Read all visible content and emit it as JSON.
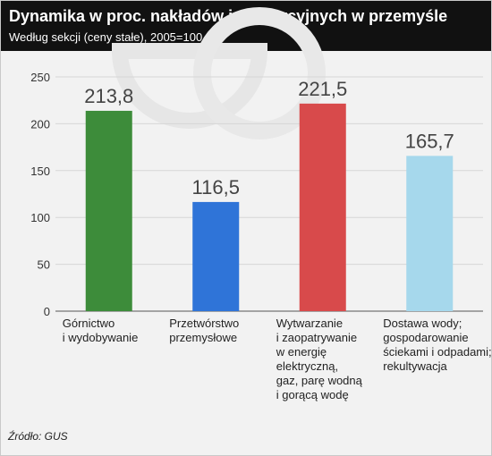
{
  "header": {
    "title": "Dynamika w proc. nakładów inwestycyjnych w przemyśle",
    "subtitle": "Według sekcji (ceny stałe), 2005=100"
  },
  "footer": {
    "source": "Źródło: GUS"
  },
  "colors": {
    "header_bg": "#111111",
    "panel_bg": "#f2f2f2",
    "watermark": "#e6e6e6"
  },
  "chart_data": {
    "type": "bar",
    "categories": [
      "Górnictwo i wydobywanie",
      "Przetwórstwo przemysłowe",
      "Wytwarzanie i zaopatrywanie w energię elektryczną, gaz, parę wodną i gorącą wodę",
      "Dostawa wody; gospodarowanie ściekami i odpadami; rekultywacja"
    ],
    "category_lines": [
      [
        "Górnictwo",
        "i wydobywanie"
      ],
      [
        "Przetwórstwo",
        "przemysłowe"
      ],
      [
        "Wytwarzanie",
        "i zaopatrywanie",
        "w energię",
        "elektryczną,",
        "gaz, parę wodną",
        "i gorącą wodę"
      ],
      [
        "Dostawa wody;",
        "gospodarowanie",
        "ściekami i odpadami;",
        "rekultywacja"
      ]
    ],
    "values": [
      213.8,
      116.5,
      221.5,
      165.7
    ],
    "value_labels": [
      "213,8",
      "116,5",
      "221,5",
      "165,7"
    ],
    "colors": [
      "#3d8c3a",
      "#2f74d8",
      "#d84a4b",
      "#a6d8ec"
    ],
    "ylim": [
      0,
      250
    ],
    "yticks": [
      0,
      50,
      100,
      150,
      200,
      250
    ],
    "grid": true,
    "legend": "none",
    "xlabel": "",
    "ylabel": ""
  }
}
